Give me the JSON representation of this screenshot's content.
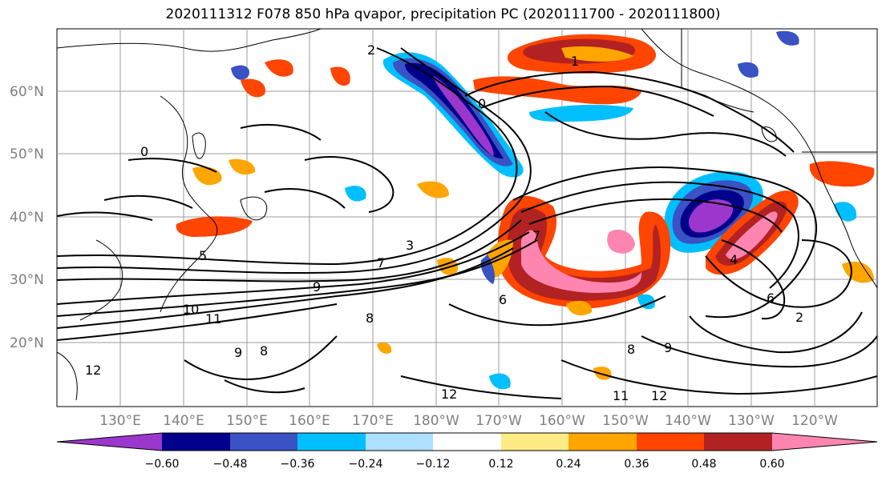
{
  "title": "2020111312 F078 850 hPa qvapor, precipitation PC (2020111700 - 2020111800)",
  "map": {
    "lat_labels": [
      "60°N",
      "50°N",
      "40°N",
      "30°N",
      "20°N"
    ],
    "lon_labels": [
      "130°E",
      "140°E",
      "150°E",
      "160°E",
      "170°E",
      "180°W",
      "170°W",
      "160°W",
      "150°W",
      "140°W",
      "130°W",
      "120°W"
    ],
    "contour_labels": [
      "2",
      "0",
      "1",
      "0",
      "3",
      "6",
      "7",
      "8",
      "9",
      "10",
      "11",
      "12",
      "9",
      "8",
      "12",
      "11",
      "12",
      "9",
      "8",
      "6",
      "2",
      "4",
      "7",
      "5"
    ]
  },
  "colorbar": {
    "colors": [
      "#9b37cc",
      "#00008b",
      "#3a52c4",
      "#00bfff",
      "#aee0ff",
      "#ffffff",
      "#ffeb85",
      "#ffa500",
      "#ff4500",
      "#b22222",
      "#ff85b1"
    ],
    "tick_labels": [
      "−0.60",
      "−0.48",
      "−0.36",
      "−0.24",
      "−0.12",
      "0.12",
      "0.24",
      "0.36",
      "0.48",
      "0.60"
    ]
  }
}
